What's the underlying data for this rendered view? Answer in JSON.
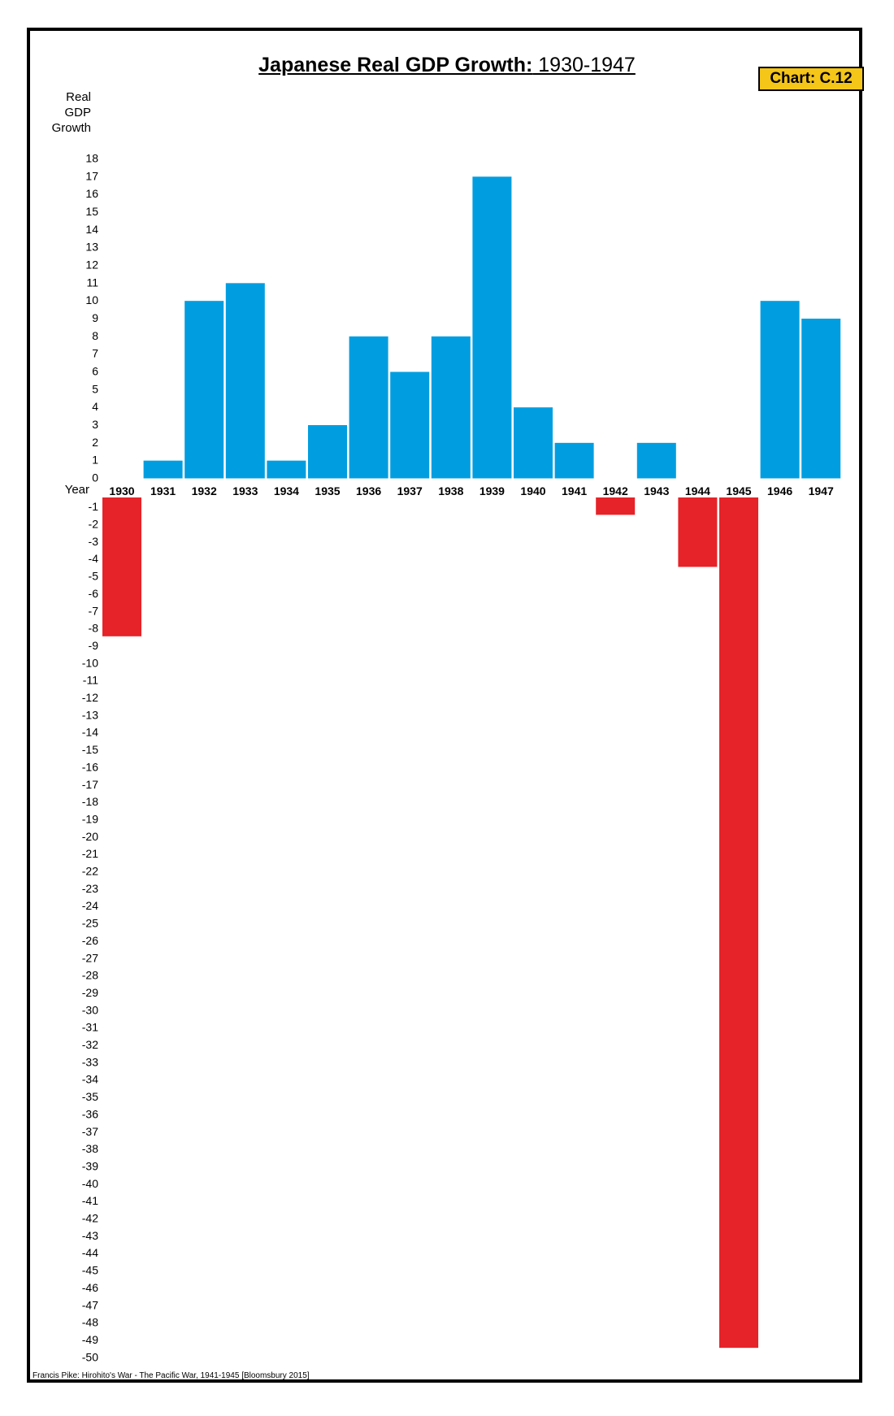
{
  "header": {
    "title_bold": "Japanese Real GDP Growth:",
    "title_range": " 1930-1947",
    "badge": "Chart: C.12"
  },
  "footer": {
    "source": "Francis Pike:  Hirohito's War - The Pacific War, 1941-1945   [Bloomsbury 2015]"
  },
  "chart_data": {
    "type": "bar",
    "title": "Japanese Real GDP Growth: 1930-1947",
    "ylabel": [
      "Real",
      "GDP",
      "Growth"
    ],
    "xlabel": "Year",
    "ylim": [
      -50,
      18
    ],
    "yticks": [
      "18",
      "17",
      "16",
      "15",
      "14",
      "13",
      "12",
      "11",
      "10",
      "9",
      "8",
      "7",
      "6",
      "5",
      "4",
      "3",
      "2",
      "1",
      "0",
      "-1",
      "-2",
      "-3",
      "-4",
      "-5",
      "-6",
      "-7",
      "-8",
      "-9",
      "-10",
      "-11",
      "-12",
      "-13",
      "-14",
      "-15",
      "-16",
      "-17",
      "-18",
      "-19",
      "-20",
      "-21",
      "-22",
      "-23",
      "-24",
      "-25",
      "-26",
      "-27",
      "-28",
      "-29",
      "-30",
      "-31",
      "-32",
      "-33",
      "-34",
      "-35",
      "-36",
      "-37",
      "-38",
      "-39",
      "-40",
      "-41",
      "-42",
      "-43",
      "-44",
      "-45",
      "-46",
      "-47",
      "-48",
      "-49",
      "-50"
    ],
    "categories": [
      "1930",
      "1931",
      "1932",
      "1933",
      "1934",
      "1935",
      "1936",
      "1937",
      "1938",
      "1939",
      "1940",
      "1941",
      "1942",
      "1943",
      "1944",
      "1945",
      "1946",
      "1947"
    ],
    "values": [
      -8,
      1,
      10,
      11,
      1,
      3,
      8,
      6,
      8,
      17,
      4,
      2,
      -1,
      2,
      -4,
      -49,
      10,
      9
    ],
    "colors": {
      "positive": "#009ee0",
      "negative": "#e52329"
    },
    "grid": false,
    "legend": "none"
  }
}
